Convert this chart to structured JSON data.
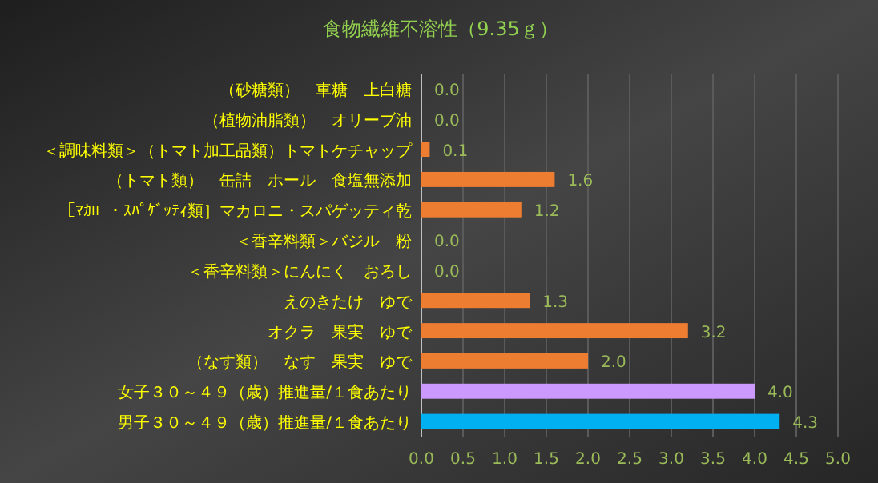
{
  "chart_data": {
    "type": "bar",
    "orientation": "horizontal",
    "title": "食物繊維不溶性（9.35ｇ）",
    "categories": [
      "（砂糖類）　車糖　上白糖",
      "（植物油脂類）　オリーブ油",
      "＜調味料類＞（トマト加工品類）トマトケチャップ",
      "（トマト類）　缶詰　ホール　食塩無添加",
      "［ﾏｶﾛﾆ・ｽﾊﾟｹﾞｯﾃｨ類］マカロニ・スパゲッティ乾",
      "＜香辛料類＞バジル　粉",
      "＜香辛料類＞にんにく　おろし",
      "えのきたけ　ゆで",
      "オクラ　果実　ゆで",
      "（なす類）　なす　果実　ゆで",
      "女子３０～４９（歳）推進量/１食あたり",
      "男子３０～４９（歳）推進量/１食あたり"
    ],
    "values": [
      0.0,
      0.0,
      0.1,
      1.6,
      1.2,
      0.0,
      0.0,
      1.3,
      3.2,
      2.0,
      4.0,
      4.3
    ],
    "value_labels": [
      "0.0",
      "0.0",
      "0.1",
      "1.6",
      "1.2",
      "0.0",
      "0.0",
      "1.3",
      "3.2",
      "2.0",
      "4.0",
      "4.3"
    ],
    "colors": [
      "#ed7d31",
      "#ed7d31",
      "#ed7d31",
      "#ed7d31",
      "#ed7d31",
      "#ed7d31",
      "#ed7d31",
      "#ed7d31",
      "#ed7d31",
      "#ed7d31",
      "#cc99ff",
      "#00b0f0"
    ],
    "xlim": [
      0,
      5
    ],
    "xticks": [
      {
        "value": 0,
        "label": "0.0"
      },
      {
        "value": 0.5,
        "label": "0.5"
      },
      {
        "value": 1,
        "label": "1.0"
      },
      {
        "value": 1.5,
        "label": "1.5"
      },
      {
        "value": 2,
        "label": "2.0"
      },
      {
        "value": 2.5,
        "label": "2.5"
      },
      {
        "value": 3,
        "label": "3.0"
      },
      {
        "value": 3.5,
        "label": "3.5"
      },
      {
        "value": 4,
        "label": "4.0"
      },
      {
        "value": 4.5,
        "label": "4.5"
      },
      {
        "value": 5,
        "label": "5.0"
      }
    ],
    "grid": "x"
  }
}
